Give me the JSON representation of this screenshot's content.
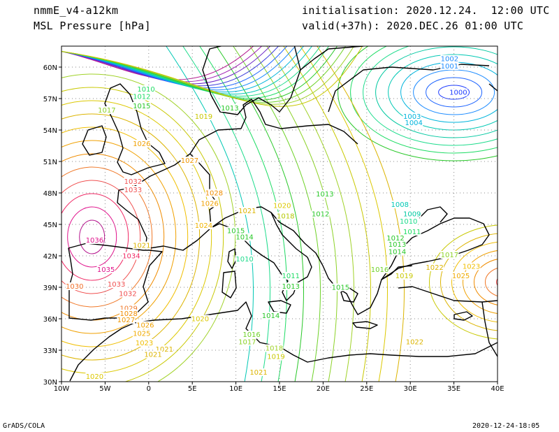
{
  "header": {
    "model": "nmmE_v4-a12km",
    "field": "MSL Pressure [hPa]",
    "init": "initialisation: 2020.12.24.  12:00 UTC",
    "valid": "valid(+37h): 2020.DEC.26 01:00 UTC"
  },
  "footer": {
    "left": "GrADS/COLA",
    "right": "2020-12-24-18:05"
  },
  "map": {
    "lon_range": [
      -10,
      40
    ],
    "lat_range": [
      30,
      62
    ],
    "lon_ticks": [
      "10W",
      "5W",
      "0",
      "5E",
      "10E",
      "15E",
      "20E",
      "25E",
      "30E",
      "35E",
      "40E"
    ],
    "lat_ticks": [
      "30N",
      "33N",
      "36N",
      "39N",
      "42N",
      "45N",
      "48N",
      "51N",
      "54N",
      "57N",
      "60N"
    ],
    "grid": "dotted",
    "coastline_color": "#000000",
    "pressure_centers": [
      {
        "type": "low",
        "value": "1000",
        "color": "#1e3cff"
      },
      {
        "type": "high",
        "value": "1035",
        "color": "#e0128c"
      },
      {
        "type": "high",
        "value": "1036",
        "color": "#e0128c"
      }
    ],
    "contour_labels": [
      {
        "text": "1000",
        "lon": 35.5,
        "lat": 57.5,
        "color": "#1e3cff"
      },
      {
        "text": "1001",
        "lon": 34.5,
        "lat": 60.0,
        "color": "#1e8cff"
      },
      {
        "text": "1002",
        "lon": 34.5,
        "lat": 60.7,
        "color": "#1e8cff"
      },
      {
        "text": "1003",
        "lon": 30.2,
        "lat": 55.2,
        "color": "#00b4dc"
      },
      {
        "text": "1004",
        "lon": 30.4,
        "lat": 54.6,
        "color": "#00b4dc"
      },
      {
        "text": "1010",
        "lon": -0.3,
        "lat": 57.8,
        "color": "#1edc64"
      },
      {
        "text": "1012",
        "lon": -0.8,
        "lat": 57.1,
        "color": "#1edc64"
      },
      {
        "text": "1015",
        "lon": -0.8,
        "lat": 56.2,
        "color": "#28c828"
      },
      {
        "text": "1017",
        "lon": -4.8,
        "lat": 55.8,
        "color": "#8cd228"
      },
      {
        "text": "1019",
        "lon": 6.3,
        "lat": 55.2,
        "color": "#c8c800"
      },
      {
        "text": "1013",
        "lon": 9.3,
        "lat": 56.0,
        "color": "#28c828"
      },
      {
        "text": "1026",
        "lon": -0.8,
        "lat": 52.6,
        "color": "#f0a000"
      },
      {
        "text": "1027",
        "lon": 4.7,
        "lat": 51.0,
        "color": "#f09600"
      },
      {
        "text": "1032",
        "lon": -1.8,
        "lat": 49.0,
        "color": "#f05050"
      },
      {
        "text": "1033",
        "lon": -1.8,
        "lat": 48.2,
        "color": "#f05050"
      },
      {
        "text": "1028",
        "lon": 7.5,
        "lat": 47.9,
        "color": "#f08c00"
      },
      {
        "text": "1026",
        "lon": 7.0,
        "lat": 46.9,
        "color": "#f0a000"
      },
      {
        "text": "1020",
        "lon": 15.3,
        "lat": 46.7,
        "color": "#dcc800"
      },
      {
        "text": "1021",
        "lon": 11.3,
        "lat": 46.2,
        "color": "#dcb400"
      },
      {
        "text": "1018",
        "lon": 15.7,
        "lat": 45.7,
        "color": "#b4c800"
      },
      {
        "text": "1024",
        "lon": 6.3,
        "lat": 44.8,
        "color": "#f0b400"
      },
      {
        "text": "1015",
        "lon": 10.0,
        "lat": 44.3,
        "color": "#28c828"
      },
      {
        "text": "1014",
        "lon": 11.0,
        "lat": 43.7,
        "color": "#28c828"
      },
      {
        "text": "1013",
        "lon": 20.2,
        "lat": 47.8,
        "color": "#28c828"
      },
      {
        "text": "1012",
        "lon": 19.7,
        "lat": 45.9,
        "color": "#28c828"
      },
      {
        "text": "1010",
        "lon": 11.0,
        "lat": 41.6,
        "color": "#1edc8c"
      },
      {
        "text": "1011",
        "lon": 16.3,
        "lat": 40.0,
        "color": "#1edc64"
      },
      {
        "text": "1013",
        "lon": 16.3,
        "lat": 39.0,
        "color": "#28c828"
      },
      {
        "text": "1014",
        "lon": 14.0,
        "lat": 36.2,
        "color": "#28c828"
      },
      {
        "text": "1016",
        "lon": 11.8,
        "lat": 34.4,
        "color": "#6ed228"
      },
      {
        "text": "1017",
        "lon": 11.3,
        "lat": 33.7,
        "color": "#8cd228"
      },
      {
        "text": "1018",
        "lon": 14.4,
        "lat": 33.1,
        "color": "#a0d228"
      },
      {
        "text": "1019",
        "lon": 14.6,
        "lat": 32.3,
        "color": "#c8c800"
      },
      {
        "text": "1021",
        "lon": 12.6,
        "lat": 30.8,
        "color": "#dcb400"
      },
      {
        "text": "1020",
        "lon": 5.9,
        "lat": 35.9,
        "color": "#dcc800"
      },
      {
        "text": "1021",
        "lon": 1.8,
        "lat": 33.0,
        "color": "#dcb400"
      },
      {
        "text": "1036",
        "lon": -6.2,
        "lat": 43.4,
        "color": "#e0128c"
      },
      {
        "text": "1034",
        "lon": -2.0,
        "lat": 41.9,
        "color": "#f02864"
      },
      {
        "text": "1035",
        "lon": -4.9,
        "lat": 40.6,
        "color": "#e0128c"
      },
      {
        "text": "1033",
        "lon": -3.7,
        "lat": 39.2,
        "color": "#f05050"
      },
      {
        "text": "1032",
        "lon": -2.4,
        "lat": 38.3,
        "color": "#f05050"
      },
      {
        "text": "1030",
        "lon": -8.5,
        "lat": 39.0,
        "color": "#f06e28"
      },
      {
        "text": "1029",
        "lon": -2.3,
        "lat": 36.9,
        "color": "#f07828"
      },
      {
        "text": "1028",
        "lon": -2.3,
        "lat": 36.4,
        "color": "#f08c00"
      },
      {
        "text": "1027",
        "lon": -2.6,
        "lat": 35.8,
        "color": "#f09600"
      },
      {
        "text": "1026",
        "lon": -0.4,
        "lat": 35.3,
        "color": "#f0a000"
      },
      {
        "text": "1025",
        "lon": -0.8,
        "lat": 34.5,
        "color": "#f0aa00"
      },
      {
        "text": "1023",
        "lon": -0.5,
        "lat": 33.6,
        "color": "#f0be00"
      },
      {
        "text": "1021",
        "lon": 0.5,
        "lat": 32.5,
        "color": "#dcb400"
      },
      {
        "text": "1020",
        "lon": -6.2,
        "lat": 30.4,
        "color": "#dcc800"
      },
      {
        "text": "1021",
        "lon": -0.8,
        "lat": 42.9,
        "color": "#dcb400"
      },
      {
        "text": "1013",
        "lon": 28.5,
        "lat": 43.0,
        "color": "#28c828"
      },
      {
        "text": "1014",
        "lon": 28.5,
        "lat": 42.3,
        "color": "#28c828"
      },
      {
        "text": "1011",
        "lon": 30.2,
        "lat": 44.2,
        "color": "#1edc64"
      },
      {
        "text": "1010",
        "lon": 29.8,
        "lat": 45.2,
        "color": "#1edc8c"
      },
      {
        "text": "1009",
        "lon": 30.2,
        "lat": 45.9,
        "color": "#00c8a0"
      },
      {
        "text": "1008",
        "lon": 28.8,
        "lat": 46.8,
        "color": "#00c8b4"
      },
      {
        "text": "1012",
        "lon": 28.3,
        "lat": 43.6,
        "color": "#28c828"
      },
      {
        "text": "1016",
        "lon": 26.5,
        "lat": 40.6,
        "color": "#6ed228"
      },
      {
        "text": "1017",
        "lon": 34.5,
        "lat": 42.0,
        "color": "#8cd228"
      },
      {
        "text": "1019",
        "lon": 29.3,
        "lat": 40.0,
        "color": "#c8c800"
      },
      {
        "text": "1022",
        "lon": 32.8,
        "lat": 40.8,
        "color": "#dcb400"
      },
      {
        "text": "1023",
        "lon": 37.0,
        "lat": 40.9,
        "color": "#f0be00"
      },
      {
        "text": "1025",
        "lon": 35.8,
        "lat": 40.0,
        "color": "#f0aa00"
      },
      {
        "text": "1022",
        "lon": 30.5,
        "lat": 33.7,
        "color": "#dcb400"
      },
      {
        "text": "1015",
        "lon": 22.0,
        "lat": 38.9,
        "color": "#28c828"
      }
    ]
  }
}
